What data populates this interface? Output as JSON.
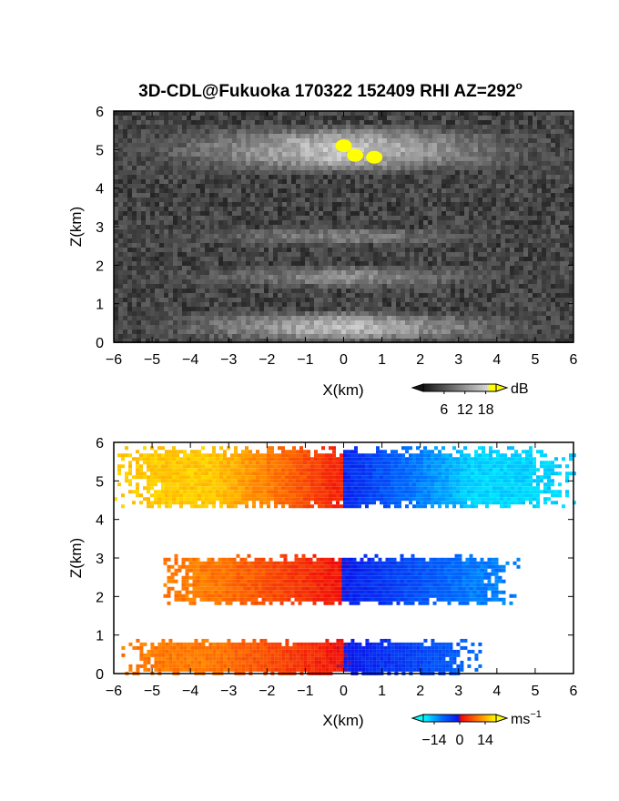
{
  "chart_data": [
    {
      "type": "heatmap",
      "title": "3D-CDL@Fukuoka 170322 152409 RHI AZ=292",
      "title_superscript": "o",
      "xlabel": "X(km)",
      "ylabel": "Z(km)",
      "xlim": [
        -6,
        6
      ],
      "ylim": [
        0,
        6
      ],
      "xticks": [
        -6,
        -5,
        -4,
        -3,
        -2,
        -1,
        0,
        1,
        2,
        3,
        4,
        5,
        6
      ],
      "yticks": [
        0,
        1,
        2,
        3,
        4,
        5,
        6
      ],
      "field": "backscatter intensity",
      "colorscale": "grayscale-to-yellow",
      "colorbar": {
        "unit": "dB",
        "ticks": [
          6,
          12,
          18
        ],
        "range": [
          0,
          21
        ]
      },
      "layers": [
        {
          "z_bottom": 0.0,
          "z_top": 0.8,
          "intensity_db": 14
        },
        {
          "z_bottom": 1.4,
          "z_top": 2.0,
          "intensity_db": 10
        },
        {
          "z_bottom": 2.5,
          "z_top": 3.0,
          "intensity_db": 9
        },
        {
          "z_bottom": 4.4,
          "z_top": 5.6,
          "intensity_db": 15
        }
      ],
      "hotspots": [
        {
          "x": 0.0,
          "z": 5.1,
          "value_db": 20
        },
        {
          "x": 0.3,
          "z": 4.85,
          "value_db": 20
        },
        {
          "x": 0.8,
          "z": 4.8,
          "value_db": 19
        }
      ]
    },
    {
      "type": "heatmap",
      "xlabel": "X(km)",
      "ylabel": "Z(km)",
      "xlim": [
        -6,
        6
      ],
      "ylim": [
        0,
        6
      ],
      "xticks": [
        -6,
        -5,
        -4,
        -3,
        -2,
        -1,
        0,
        1,
        2,
        3,
        4,
        5,
        6
      ],
      "yticks": [
        0,
        1,
        2,
        3,
        4,
        5,
        6
      ],
      "field": "radial velocity",
      "colorscale": "cyan-blue-red-yellow",
      "colorbar": {
        "unit": "ms",
        "unit_superscript": "-1",
        "ticks": [
          -14,
          0,
          14
        ],
        "range": [
          -20,
          20
        ]
      },
      "layers": [
        {
          "x_start": -6.0,
          "x_end": 6.0,
          "z_bottom": 4.3,
          "z_top": 5.9,
          "velocity_left": 16,
          "velocity_right": -17
        },
        {
          "x_start": -4.8,
          "x_end": 4.6,
          "z_bottom": 1.8,
          "z_top": 3.1,
          "velocity_left": 10,
          "velocity_right": -11
        },
        {
          "x_start": -5.8,
          "x_end": 3.6,
          "z_bottom": 0.0,
          "z_top": 0.9,
          "velocity_left": 10,
          "velocity_right": -9
        }
      ]
    }
  ]
}
